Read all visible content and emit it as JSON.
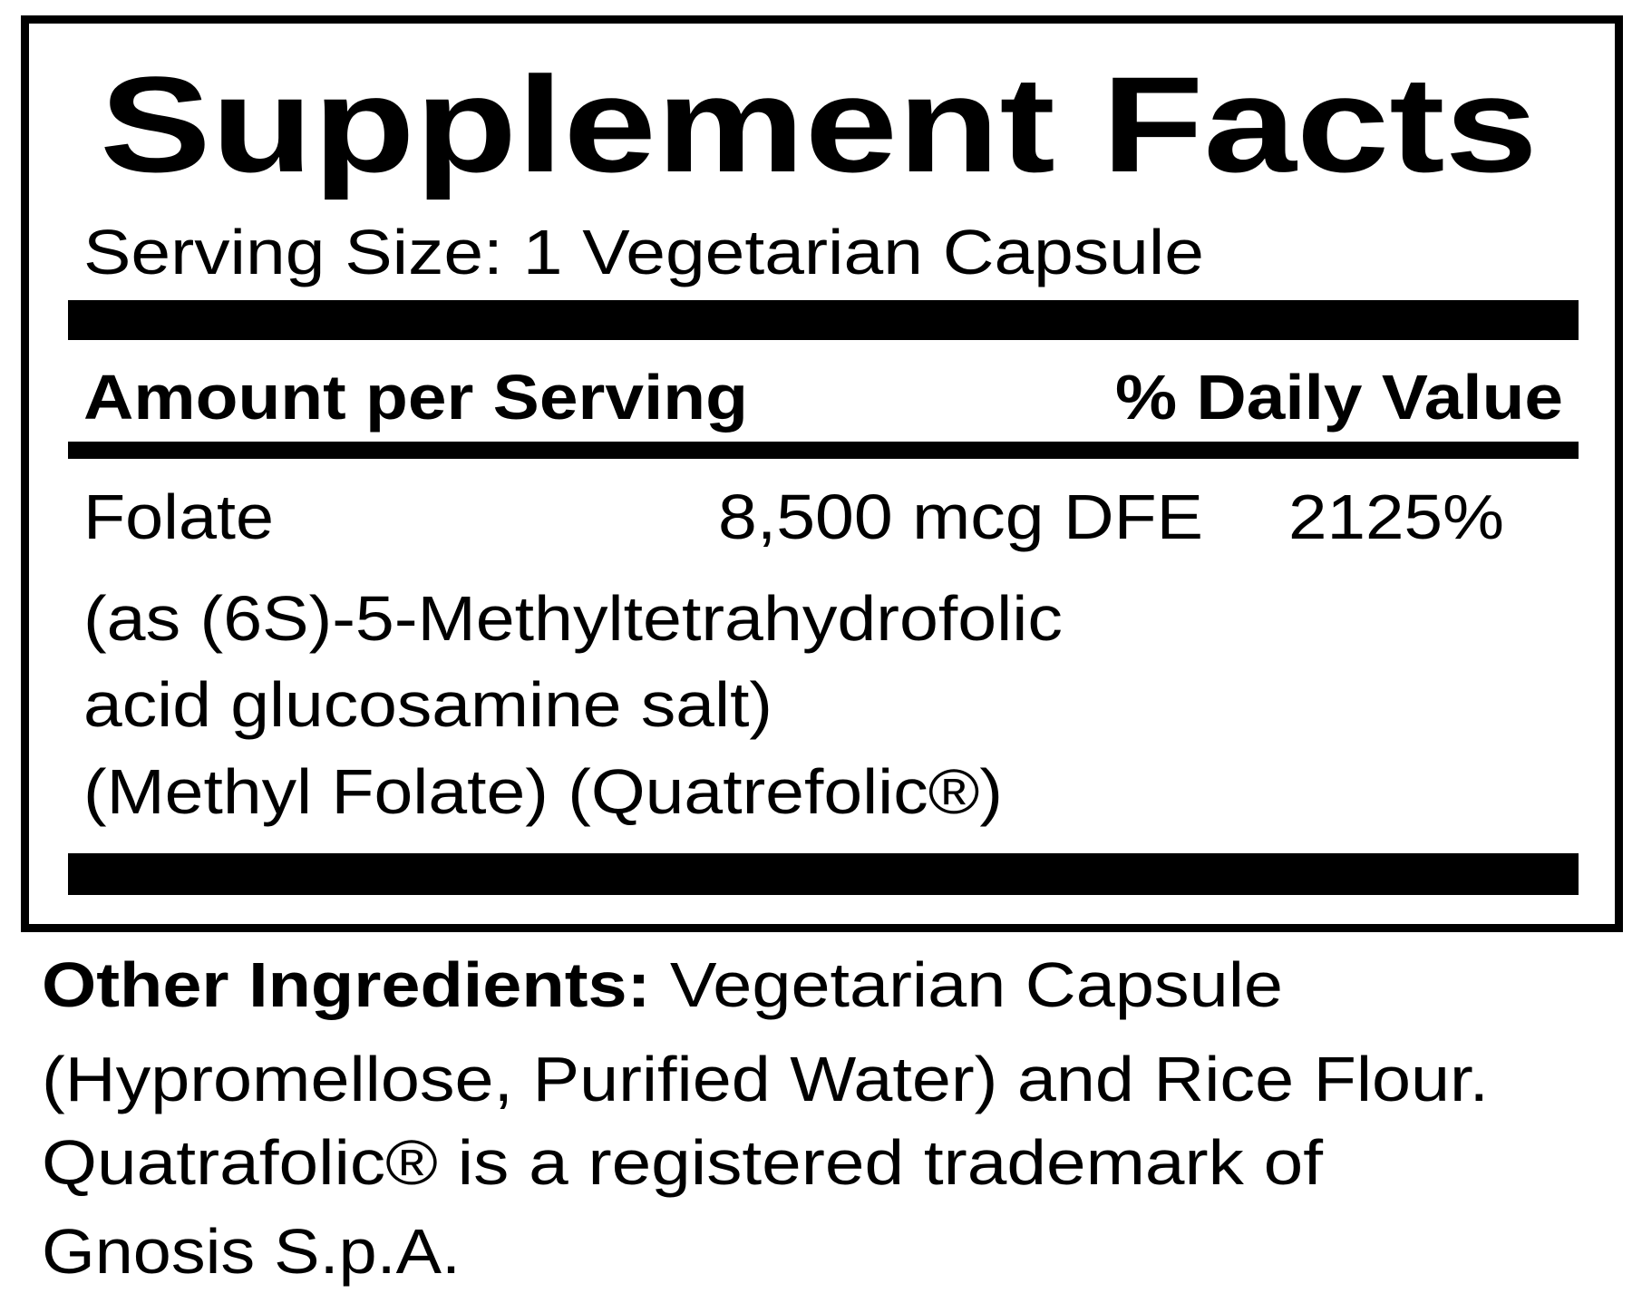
{
  "label": {
    "title": "Supplement Facts",
    "serving_size": "Serving Size:  1 Vegetarian Capsule",
    "header_amount": "Amount per Serving",
    "header_dv": "% Daily Value",
    "rows": [
      {
        "name": "Folate",
        "amount": "8,500 mcg DFE",
        "dv": "2125%",
        "details": [
          "(as (6S)-5-Methyltetrahydrofolic",
          "acid glucosamine salt)",
          "(Methyl Folate) (Quatrefolic®)"
        ]
      }
    ]
  },
  "other_ingredients": {
    "label": "Other Ingredients:",
    "line1": " Vegetarian Capsule",
    "lines": [
      "(Hypromellose, Purified Water) and Rice Flour.",
      "Quatrafolic®  is a registered trademark of",
      "Gnosis S.p.A."
    ]
  }
}
